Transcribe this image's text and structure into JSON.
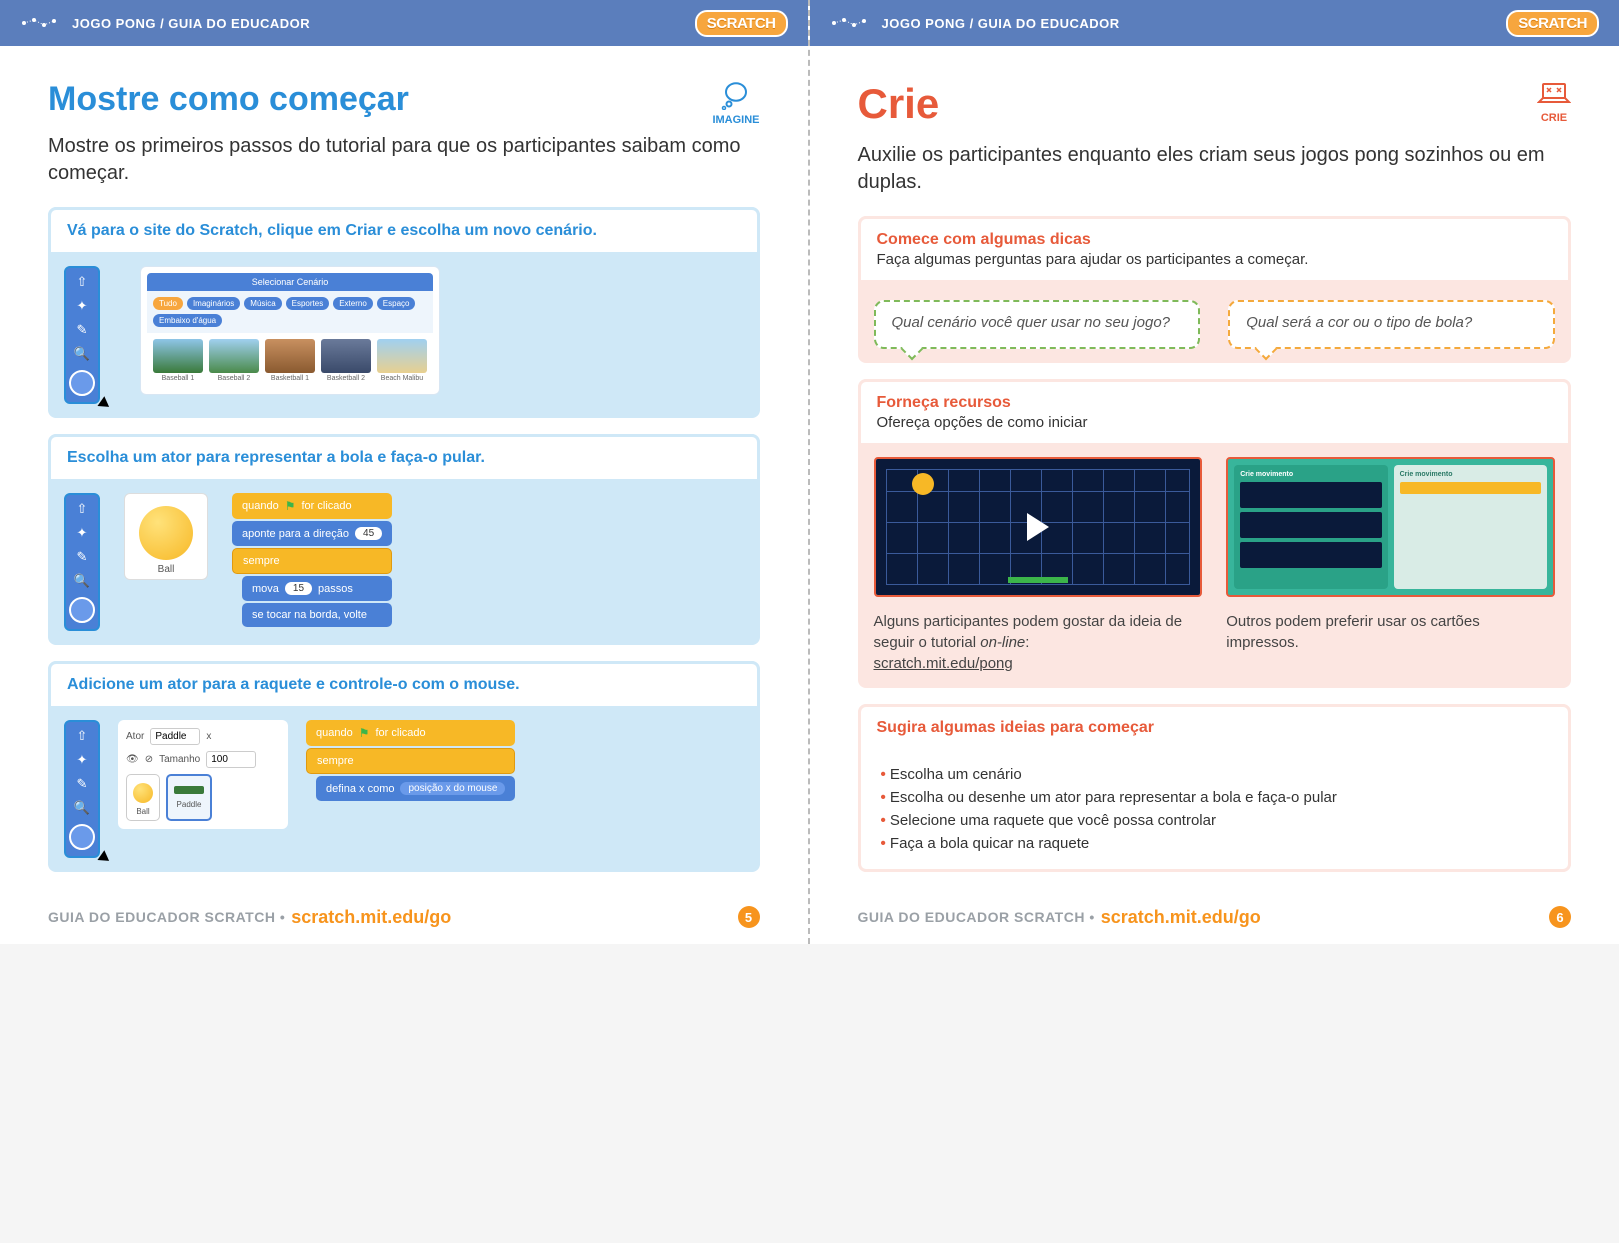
{
  "colors": {
    "header_bg": "#5b7ebc",
    "imagine": "#2a8ed8",
    "crie": "#e75a3a",
    "orange": "#f7941d",
    "scratch_orange": "#f7a63e",
    "card_blue_bg": "#cfe8f7",
    "card_pink_bg": "#fce6e1",
    "motion_block": "#4a80d6",
    "event_block": "#f7b826",
    "bubble_green": "#7fba5a",
    "bubble_orange": "#f4a93c"
  },
  "header": {
    "breadcrumb": "JOGO PONG / GUIA DO EDUCADOR",
    "logo_text": "SCRATCH"
  },
  "footer": {
    "guide_label": "GUIA DO EDUCADOR SCRATCH •",
    "link_text": "scratch.mit.edu/go",
    "left_page_num": "5",
    "right_page_num": "6"
  },
  "left": {
    "badge_label": "IMAGINE",
    "title": "Mostre como começar",
    "intro": "Mostre os primeiros passos do tutorial para que os participantes saibam como começar.",
    "card1": {
      "heading": "Vá para o site do Scratch, clique em Criar e escolha um novo cenário.",
      "panel_title": "Selecionar Cenário",
      "tabs": [
        "Tudo",
        "Imaginários",
        "Música",
        "Esportes",
        "Externo",
        "Espaço",
        "Embaixo d'água"
      ],
      "thumbs": [
        {
          "cap": "Baseball 1",
          "bg": "linear-gradient(#8ec5e8,#3a7a3a)"
        },
        {
          "cap": "Baseball 2",
          "bg": "linear-gradient(#a0d0f0,#4a8a4a)"
        },
        {
          "cap": "Basketball 1",
          "bg": "linear-gradient(#c89060,#8a5a30)"
        },
        {
          "cap": "Basketball 2",
          "bg": "linear-gradient(#6a7a9a,#3a4a6a)"
        },
        {
          "cap": "Beach Malibu",
          "bg": "linear-gradient(#a0d0f0,#e8d090)"
        }
      ]
    },
    "card2": {
      "heading": "Escolha um ator para representar a bola e faça-o pular.",
      "ball_label": "Ball",
      "blocks": {
        "event": "quando ⚑ for clicado",
        "motion1_pre": "aponte para a direção",
        "motion1_val": "45",
        "ctrl": "sempre",
        "motion2_pre": "mova",
        "motion2_val": "15",
        "motion2_post": "passos",
        "motion3": "se tocar na borda, volte"
      }
    },
    "card3": {
      "heading": "Adicione um ator para a raquete e controle-o com o mouse.",
      "sprite_panel": {
        "lbl_ator": "Ator",
        "val_ator": "Paddle",
        "lbl_x": "x",
        "lbl_tam": "Tamanho",
        "val_tam": "100",
        "thumb_ball": "Ball",
        "thumb_paddle": "Paddle"
      },
      "blocks": {
        "event": "quando ⚑ for clicado",
        "ctrl": "sempre",
        "motion_pre": "defina x como",
        "motion_slot": "posição x do mouse"
      }
    }
  },
  "right": {
    "badge_label": "CRIE",
    "title": "Crie",
    "intro": "Auxilie os participantes enquanto eles criam seus jogos pong sozinhos ou em duplas.",
    "card1": {
      "heading": "Comece com algumas dicas",
      "sub": "Faça algumas perguntas para ajudar os participantes a começar.",
      "bubble1": "Qual cenário você quer usar no seu jogo?",
      "bubble2": "Qual será a cor ou o tipo de bola?"
    },
    "card2": {
      "heading": "Forneça recursos",
      "sub": "Ofereça opções de como iniciar",
      "mini_title": "Crie movimento",
      "caption1_a": "Alguns participantes podem gostar da ideia de seguir o tutorial ",
      "caption1_b": "on-line",
      "caption1_c": ":",
      "caption1_link": "scratch.mit.edu/pong",
      "caption2": "Outros podem preferir usar os cartões impressos."
    },
    "card3": {
      "heading": "Sugira algumas ideias para começar",
      "items": [
        "Escolha um cenário",
        "Escolha ou desenhe um ator para representar a bola e faça-o pular",
        "Selecione uma raquete que você possa controlar",
        "Faça a bola quicar na raquete"
      ]
    }
  }
}
